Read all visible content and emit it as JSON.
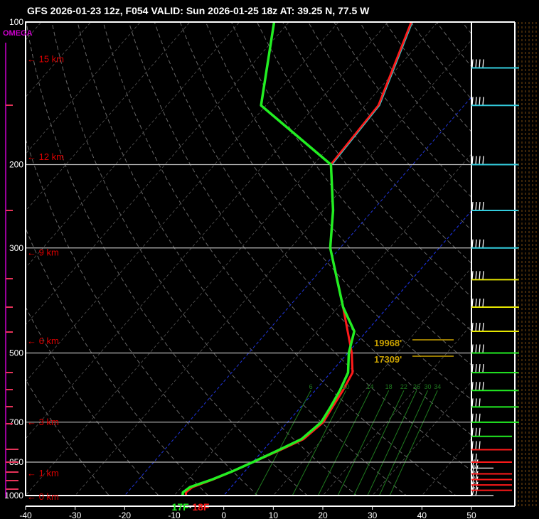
{
  "header": {
    "title": "GFS 2026-01-23 12z, F054  VALID: Sun 2026-01-25 18z  AT: 39.25 N, 77.5 W"
  },
  "omega_label": "OMEGA",
  "colors": {
    "background": "#000000",
    "temperature": "#ff1a1a",
    "dewpoint": "#22ee22",
    "wetbulb": "#33cccc",
    "height_labels": "#dd0000",
    "isobar": "#bbbbbb",
    "isotherm": "#555555",
    "zero_isotherm": "#1a2fd6",
    "mixing_ratio": "#1f7a1f",
    "freezing_level": "#c8a000",
    "omega": "#cc00cc"
  },
  "chart_data": {
    "type": "line",
    "chart_kind": "skew-t log-p sounding",
    "xlim": [
      -40,
      50
    ],
    "x_ticks": [
      "-40",
      "-30",
      "-20",
      "-10",
      "0",
      "10",
      "20",
      "30",
      "40",
      "50"
    ],
    "pressure_range": [
      1000,
      100
    ],
    "pressure_labels": [
      "100",
      "200",
      "300",
      "500",
      "700",
      "850",
      "1000"
    ],
    "height_labels": [
      "15 km",
      "12 km",
      "9 km",
      "6 km",
      "3 km",
      "1 km",
      "0 km"
    ],
    "mixing_ratio_labels": [
      "6",
      "10",
      "14",
      "18",
      "22",
      "26",
      "30",
      "34"
    ],
    "freezing_level_labels": [
      "19968'",
      "17309'"
    ],
    "surface_labels": {
      "dewpoint": "17F",
      "separator": "·",
      "temperature": "18F"
    },
    "series": [
      {
        "key": "temperature",
        "points": [
          [
            1000,
            -7.6
          ],
          [
            985,
            -8.2
          ],
          [
            960,
            -7.8
          ],
          [
            925,
            -5.0
          ],
          [
            890,
            -2.5
          ],
          [
            850,
            0.0
          ],
          [
            800,
            3.5
          ],
          [
            760,
            6.2
          ],
          [
            700,
            7.2
          ],
          [
            650,
            6.4
          ],
          [
            600,
            5.6
          ],
          [
            550,
            4.4
          ],
          [
            500,
            0.8
          ],
          [
            400,
            -9.0
          ],
          [
            300,
            -22.0
          ],
          [
            250,
            -28.0
          ],
          [
            200,
            -36.5
          ],
          [
            150,
            -37.3
          ],
          [
            100,
            -45.3
          ]
        ]
      },
      {
        "key": "dewpoint",
        "points": [
          [
            1000,
            -8.3
          ],
          [
            985,
            -8.8
          ],
          [
            960,
            -8.3
          ],
          [
            925,
            -5.2
          ],
          [
            890,
            -2.6
          ],
          [
            850,
            0.0
          ],
          [
            800,
            3.2
          ],
          [
            760,
            5.8
          ],
          [
            700,
            6.8
          ],
          [
            650,
            6.0
          ],
          [
            600,
            5.0
          ],
          [
            550,
            3.5
          ],
          [
            500,
            0.2
          ],
          [
            450,
            -2.5
          ],
          [
            400,
            -9.0
          ],
          [
            300,
            -22.0
          ],
          [
            250,
            -28.0
          ],
          [
            200,
            -36.5
          ],
          [
            150,
            -61.0
          ],
          [
            100,
            -73.0
          ]
        ]
      }
    ],
    "wind_barb_levels": [
      1000,
      975,
      950,
      925,
      900,
      875,
      850,
      800,
      750,
      700,
      650,
      600,
      550,
      500,
      450,
      400,
      350,
      300,
      250,
      200,
      150,
      125
    ]
  }
}
